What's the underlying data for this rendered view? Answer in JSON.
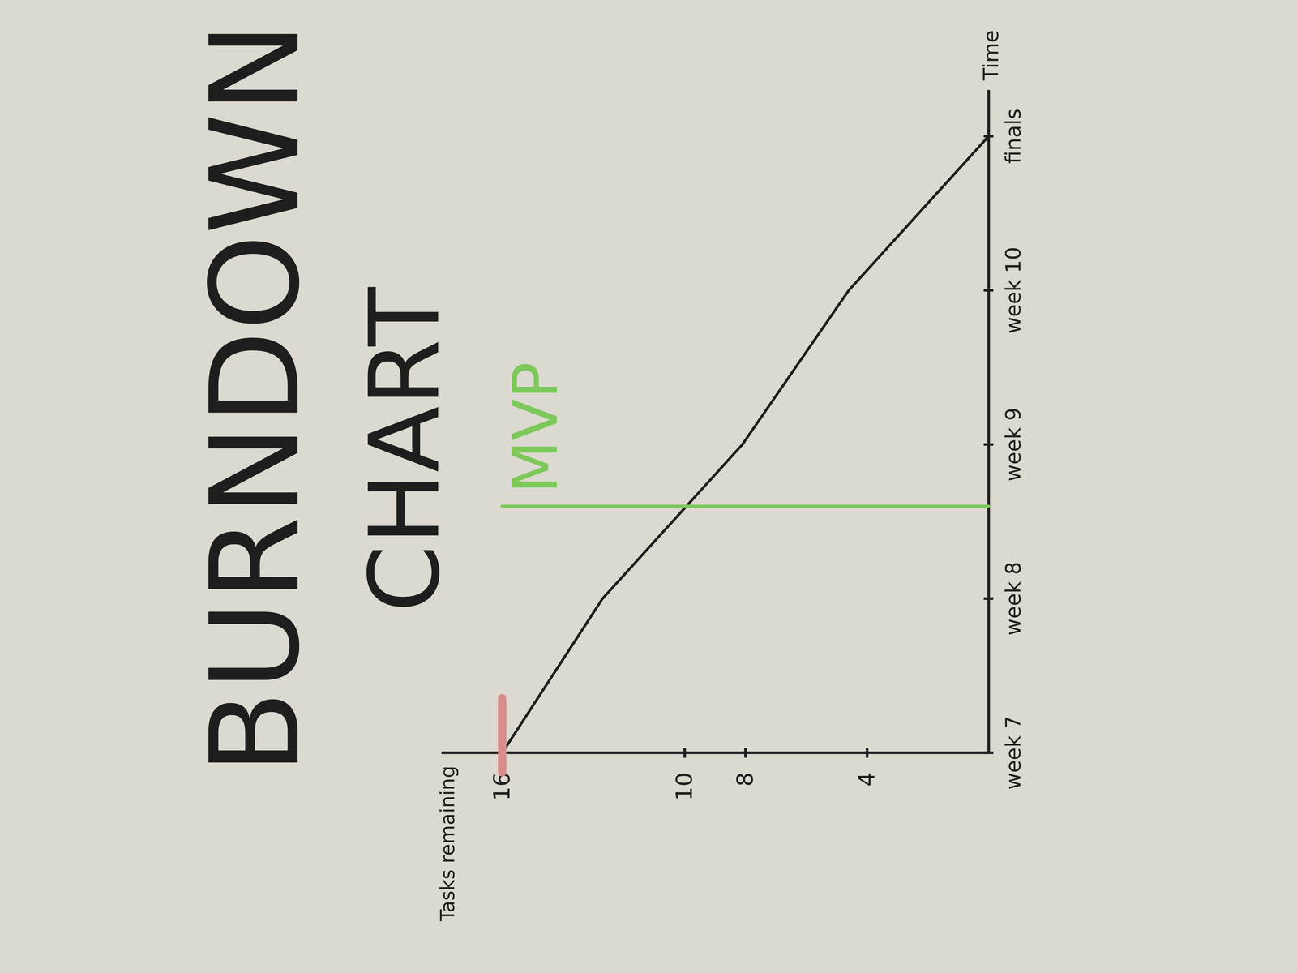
{
  "chart_data": {
    "type": "line",
    "title": "BURNDOWN CHART",
    "x_label": "Time",
    "y_label": "Tasks remaining",
    "x": [
      7,
      8,
      9,
      10,
      11
    ],
    "series": [
      {
        "color": "#1e1e1e",
        "values": [
          16,
          12.7,
          8.1,
          4.6,
          0
        ]
      }
    ],
    "xlim": [
      7,
      11.3
    ],
    "xticks": [
      {
        "value": 7,
        "label": "week 7"
      },
      {
        "value": 8,
        "label": "week 8"
      },
      {
        "value": 9,
        "label": "week 9"
      },
      {
        "value": 10,
        "label": "week 10"
      },
      {
        "value": 11,
        "label": "finals"
      }
    ],
    "ylim": [
      0,
      18
    ],
    "yticks": [
      4,
      8,
      10,
      16
    ],
    "grid": false,
    "annotations": [
      {
        "type": "vline",
        "text": "MVP",
        "x": 8.6,
        "y": [
          0,
          16
        ],
        "color": "#7cc95a"
      },
      {
        "type": "mark",
        "y": 16,
        "color": "#d98c8c"
      }
    ]
  }
}
